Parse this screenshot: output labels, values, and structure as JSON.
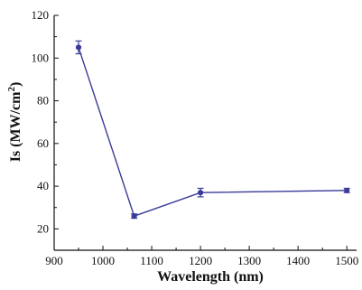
{
  "chart_data": {
    "type": "line",
    "xlabel": "Wavelength (nm)",
    "ylabel_parts": {
      "main": "Is (MW/cm",
      "sup": "2",
      "tail": ")"
    },
    "xlim": [
      900,
      1520
    ],
    "ylim": [
      10,
      120
    ],
    "xticks": [
      900,
      1000,
      1100,
      1200,
      1300,
      1400,
      1500
    ],
    "yticks": [
      20,
      40,
      60,
      80,
      100,
      120
    ],
    "grid": false,
    "series": [
      {
        "color": "#3a3a99",
        "marker": "circle",
        "points": [
          {
            "x": 950,
            "y": 105,
            "err": 3
          },
          {
            "x": 1064,
            "y": 26,
            "err": 1
          },
          {
            "x": 1200,
            "y": 37,
            "err": 2
          },
          {
            "x": 1500,
            "y": 38,
            "err": 1
          }
        ]
      }
    ]
  }
}
